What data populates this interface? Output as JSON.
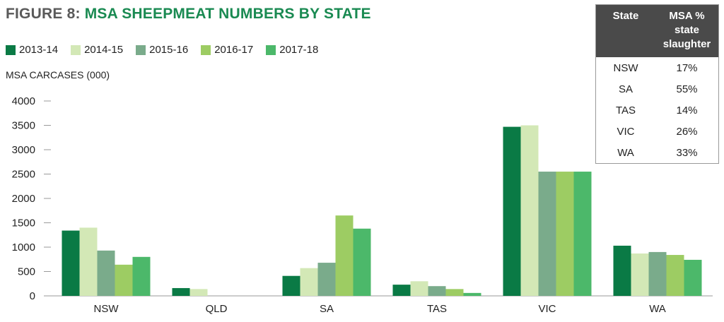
{
  "title": {
    "prefix": "FIGURE 8:",
    "main": "MSA SHEEPMEAT NUMBERS BY STATE"
  },
  "colors": {
    "title_prefix": "#5a5a5a",
    "title_main": "#1a8a52",
    "table_header_bg": "#4a4a4a"
  },
  "chart_data": {
    "type": "bar",
    "ylabel": "MSA CARCASES (000)",
    "ylim": [
      0,
      4000
    ],
    "yticks": [
      0,
      500,
      1000,
      1500,
      2000,
      2500,
      3000,
      3500,
      4000
    ],
    "categories": [
      "NSW",
      "QLD",
      "SA",
      "TAS",
      "VIC",
      "WA"
    ],
    "legend_position": "top-left",
    "grid": false,
    "series": [
      {
        "name": "2013-14",
        "color": "#0a7a45",
        "values": [
          1340,
          160,
          410,
          230,
          3470,
          1030
        ]
      },
      {
        "name": "2014-15",
        "color": "#d3e8b6",
        "values": [
          1400,
          140,
          570,
          300,
          3500,
          870
        ]
      },
      {
        "name": "2015-16",
        "color": "#7aab8b",
        "values": [
          930,
          0,
          680,
          200,
          2550,
          900
        ]
      },
      {
        "name": "2016-17",
        "color": "#9dcc63",
        "values": [
          640,
          0,
          1650,
          140,
          2550,
          840
        ]
      },
      {
        "name": "2017-18",
        "color": "#4cb86a",
        "values": [
          800,
          0,
          1380,
          60,
          2550,
          740
        ]
      }
    ]
  },
  "table": {
    "headers": [
      "State",
      "MSA % state slaughter"
    ],
    "rows": [
      [
        "NSW",
        "17%"
      ],
      [
        "SA",
        "55%"
      ],
      [
        "TAS",
        "14%"
      ],
      [
        "VIC",
        "26%"
      ],
      [
        "WA",
        "33%"
      ]
    ]
  }
}
